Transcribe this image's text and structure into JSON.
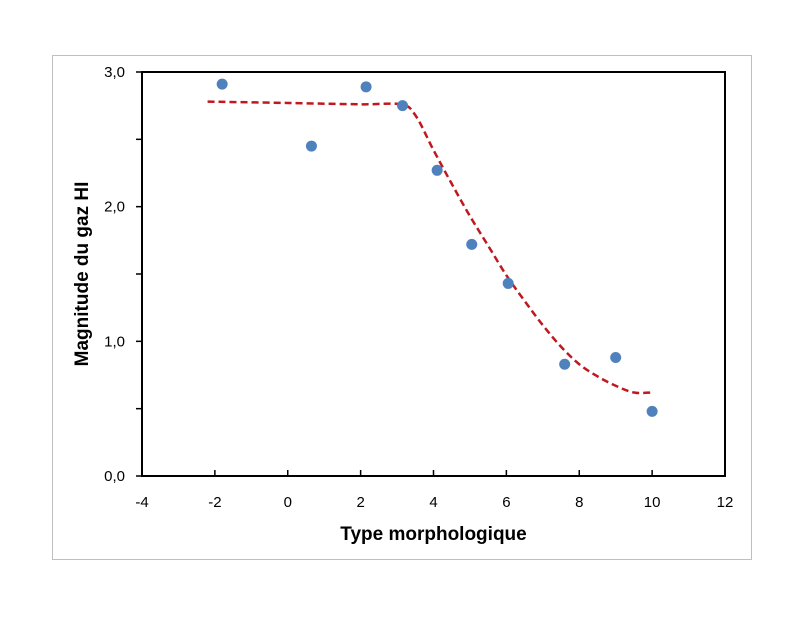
{
  "chart_data": {
    "type": "scatter",
    "title": "",
    "xlabel": "Type morphologique",
    "ylabel": "Magnitude du gaz HI",
    "xlim": [
      -4,
      12
    ],
    "ylim": [
      0,
      3
    ],
    "x_ticks": [
      "-4",
      "-2",
      "0",
      "2",
      "4",
      "6",
      "8",
      "10",
      "12"
    ],
    "y_ticks": [
      "0,0",
      "1,0",
      "2,0",
      "3,0"
    ],
    "grid": false,
    "legend": "none",
    "series": [
      {
        "type": "scatter",
        "color": "#4f81bd",
        "x": [
          -1.8,
          0.65,
          2.15,
          3.15,
          4.1,
          5.05,
          6.05,
          7.6,
          9.0,
          10.0
        ],
        "y": [
          2.91,
          2.45,
          2.89,
          2.75,
          2.27,
          1.72,
          1.43,
          0.83,
          0.88,
          0.48
        ]
      },
      {
        "type": "line",
        "style": "dashed",
        "color": "#c0181f",
        "x": [
          -2.2,
          0,
          2,
          3.1,
          3.5,
          4,
          4.5,
          5,
          5.5,
          6,
          6.5,
          7,
          7.5,
          8,
          8.5,
          9,
          9.5,
          10
        ],
        "y": [
          2.78,
          2.77,
          2.76,
          2.76,
          2.68,
          2.42,
          2.17,
          1.93,
          1.71,
          1.49,
          1.3,
          1.12,
          0.96,
          0.83,
          0.74,
          0.67,
          0.62,
          0.62
        ]
      }
    ]
  }
}
